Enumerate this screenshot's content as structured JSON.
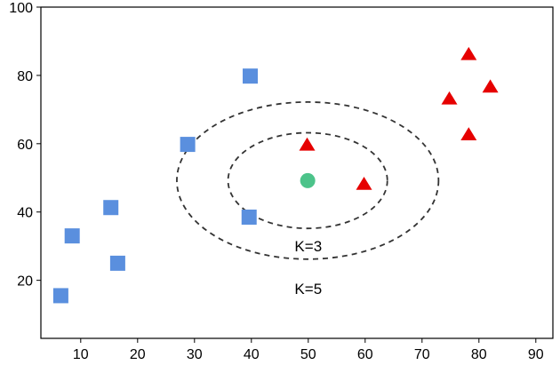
{
  "chart_data": {
    "type": "scatter",
    "title": "",
    "xlabel": "",
    "ylabel": "",
    "xlim": [
      3,
      93
    ],
    "ylim": [
      3,
      100
    ],
    "xticks": [
      10,
      20,
      30,
      40,
      50,
      60,
      70,
      80,
      90
    ],
    "yticks": [
      20,
      40,
      60,
      80,
      100
    ],
    "grid": false,
    "legend": false,
    "series": [
      {
        "marker": "square",
        "color": "#5a8fde",
        "points": [
          [
            6.5,
            15.5
          ],
          [
            8.5,
            33
          ],
          [
            15.3,
            41.3
          ],
          [
            16.5,
            25
          ],
          [
            28.8,
            59.8
          ],
          [
            39.6,
            38.5
          ],
          [
            39.8,
            79.8
          ]
        ]
      },
      {
        "marker": "triangle",
        "color": "#e60000",
        "points": [
          [
            49.8,
            59.5
          ],
          [
            59.8,
            48
          ],
          [
            74.8,
            73
          ],
          [
            78.2,
            86
          ],
          [
            78.2,
            62.5
          ],
          [
            82,
            76.5
          ]
        ]
      },
      {
        "marker": "circle",
        "color": "#4cc38a",
        "points": [
          [
            49.9,
            49.2
          ]
        ]
      }
    ],
    "circles": [
      {
        "cx": 49.9,
        "cy": 49.2,
        "radius": 14
      },
      {
        "cx": 49.9,
        "cy": 49.2,
        "radius": 23
      }
    ],
    "annotations": [
      {
        "text": "K=3",
        "x": 50,
        "y": 30
      },
      {
        "text": "K=5",
        "x": 50,
        "y": 17.5
      }
    ]
  }
}
